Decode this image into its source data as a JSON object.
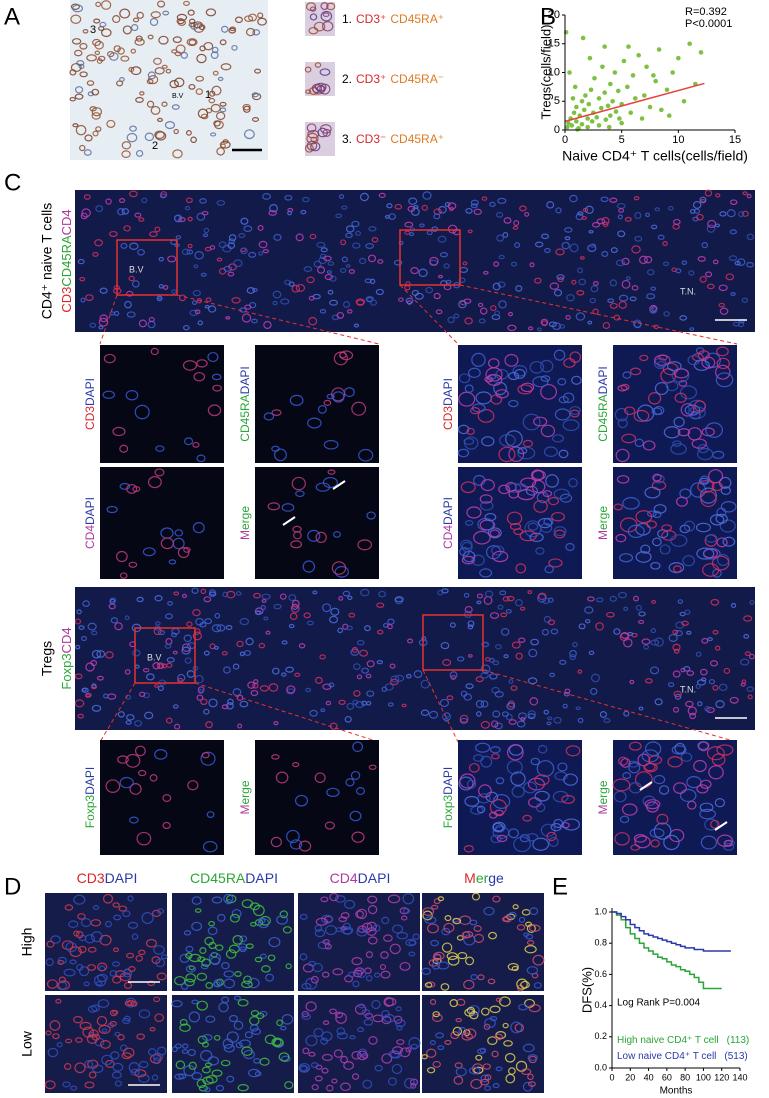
{
  "panels": {
    "A": {
      "label": "A",
      "markers": [
        "3",
        "1",
        "2"
      ],
      "vessel": "B.V",
      "insets": [
        {
          "number": "1.",
          "segments": [
            {
              "text": "CD3⁺",
              "color": "#d7262b"
            },
            {
              "text": "CD45RA⁺",
              "color": "#e07b22"
            }
          ]
        },
        {
          "number": "2.",
          "segments": [
            {
              "text": "CD3⁺",
              "color": "#d7262b"
            },
            {
              "text": "CD45RA⁻",
              "color": "#e07b22"
            }
          ]
        },
        {
          "number": "3.",
          "segments": [
            {
              "text": "CD3⁻",
              "color": "#d7262b"
            },
            {
              "text": "CD45RA⁺",
              "color": "#e07b22"
            }
          ]
        }
      ]
    },
    "B": {
      "label": "B"
    },
    "C": {
      "label": "C",
      "naive": {
        "title": "CD4⁺ naive T cells",
        "stain": [
          {
            "text": "CD3",
            "color": "#d7262b"
          },
          {
            "text": "CD45RA",
            "color": "#2aa636"
          },
          {
            "text": "CD4",
            "color": "#b0389e"
          }
        ],
        "vessel": "B.V",
        "tumor": "T.N.",
        "panels": [
          [
            {
              "text": "CD3",
              "color": "#d7262b"
            },
            {
              "text": "DAPI",
              "color": "#2b3aa8"
            }
          ],
          [
            {
              "text": "CD45RA",
              "color": "#2aa636"
            },
            {
              "text": "DAPI",
              "color": "#2b3aa8"
            }
          ],
          [
            {
              "text": "CD4",
              "color": "#b0389e"
            },
            {
              "text": "DAPI",
              "color": "#2b3aa8"
            }
          ],
          [
            {
              "text": "M",
              "color": "#b0389e"
            },
            {
              "text": "erge",
              "color": "#2aa636"
            }
          ]
        ]
      },
      "tregs": {
        "title": "Tregs",
        "stain": [
          {
            "text": "Foxp3",
            "color": "#2aa636"
          },
          {
            "text": "CD4",
            "color": "#b0389e"
          }
        ],
        "vessel": "B.V",
        "tumor": "T.N.",
        "panels": [
          [
            {
              "text": "Foxp3",
              "color": "#2aa636"
            },
            {
              "text": "DAPI",
              "color": "#2b3aa8"
            }
          ],
          [
            {
              "text": "M",
              "color": "#b0389e"
            },
            {
              "text": "erge",
              "color": "#2aa636"
            }
          ]
        ]
      }
    },
    "D": {
      "label": "D",
      "columns": [
        [
          {
            "text": "CD3",
            "color": "#d7262b"
          },
          {
            "text": "DAPI",
            "color": "#2b3aa8"
          }
        ],
        [
          {
            "text": "CD45RA",
            "color": "#2aa636"
          },
          {
            "text": "DAPI",
            "color": "#2b3aa8"
          }
        ],
        [
          {
            "text": "CD4",
            "color": "#b0389e"
          },
          {
            "text": "DAPI",
            "color": "#2b3aa8"
          }
        ],
        [
          {
            "text": "M",
            "color": "#d7262b"
          },
          {
            "text": "er",
            "color": "#2aa636"
          },
          {
            "text": "ge",
            "color": "#2b3aa8"
          }
        ]
      ],
      "rows": [
        "High",
        "Low"
      ]
    },
    "E": {
      "label": "E"
    }
  },
  "chart_data": [
    {
      "type": "scatter",
      "xlabel": "Naive CD4⁺ T cells(cells/field)",
      "ylabel": "Tregs(cells/field)",
      "annotations": [
        "R=0.392",
        "P<0.0001"
      ],
      "color": "#7cc142",
      "xlim": [
        0,
        15
      ],
      "xticks": [
        0,
        5,
        10,
        15
      ],
      "ylim": [
        0,
        20
      ],
      "yticks": [
        0,
        5,
        10,
        15,
        20
      ],
      "x": [
        0.2,
        0.3,
        0.5,
        0.6,
        0.8,
        1,
        1,
        1.2,
        1.3,
        1.5,
        1.5,
        1.7,
        1.8,
        2,
        2,
        2.1,
        2.3,
        2.4,
        2.5,
        2.6,
        2.8,
        3,
        3,
        3.2,
        3.3,
        3.5,
        3.6,
        3.8,
        4,
        4,
        4.2,
        4.4,
        4.5,
        4.7,
        5,
        5,
        5.2,
        5.5,
        5.8,
        6,
        6.2,
        6.5,
        6.8,
        7,
        7.2,
        7.5,
        8,
        8.3,
        8.5,
        9,
        9.5,
        10,
        10.5,
        11,
        11.5,
        12,
        0.1,
        1.6,
        3.5,
        0.4,
        0.9,
        2.2,
        4.8,
        1.1,
        0.7,
        3.9,
        5.6,
        7.8,
        9.2
      ],
      "values": [
        0.5,
        1.2,
        2,
        0.8,
        3,
        1.5,
        4,
        0.3,
        2.5,
        5,
        1,
        3.5,
        6,
        2,
        0.5,
        4.5,
        7,
        1.5,
        3,
        9,
        2.2,
        5.5,
        0.8,
        3.8,
        11,
        6.5,
        1.8,
        4.2,
        8,
        2.5,
        5,
        10,
        3.2,
        6.8,
        1.2,
        4.5,
        12,
        7.5,
        3,
        9.5,
        5.5,
        13,
        2,
        6,
        11,
        4,
        8.5,
        14,
        3.5,
        7,
        10,
        12.5,
        5,
        15,
        8,
        13.5,
        17,
        16,
        14.5,
        10,
        7.5,
        12.5,
        2,
        0.1,
        5.5,
        0.5,
        14.5,
        9.5,
        2.5
      ],
      "fit": {
        "x": [
          0,
          12.3
        ],
        "values": [
          1.5,
          8.1
        ],
        "color": "#e8433d"
      }
    },
    {
      "type": "line",
      "step": true,
      "ylabel": "DFS(%)",
      "xlabel": "Months",
      "annotation": "Log Rank P=0.004",
      "xlim": [
        0,
        140
      ],
      "xticks": [
        0,
        20,
        40,
        60,
        80,
        100,
        120,
        140
      ],
      "ylim": [
        0,
        1
      ],
      "yticks": [
        {
          "value": 0,
          "label": "0.0"
        },
        0.2,
        0.4,
        0.6,
        0.8,
        {
          "value": 1,
          "label": "1.0"
        }
      ],
      "x": [
        0,
        5,
        10,
        15,
        20,
        25,
        30,
        35,
        40,
        45,
        50,
        55,
        60,
        65,
        70,
        75,
        80,
        85,
        90,
        95,
        100,
        110,
        120,
        130
      ],
      "series": [
        {
          "name": "High naive CD4⁺ T cell",
          "count": "(113)",
          "color": "#2aa636",
          "values": [
            1,
            0.98,
            0.95,
            0.9,
            0.86,
            0.83,
            0.8,
            0.77,
            0.75,
            0.73,
            0.71,
            0.7,
            0.68,
            0.66,
            0.65,
            0.63,
            0.62,
            0.6,
            0.58,
            0.55,
            0.51,
            0.51,
            0.51,
            null
          ]
        },
        {
          "name": "Low naive CD4⁺ T cell",
          "count": "(513)",
          "color": "#2b3aa8",
          "values": [
            1,
            0.99,
            0.97,
            0.95,
            0.92,
            0.9,
            0.88,
            0.86,
            0.85,
            0.84,
            0.83,
            0.82,
            0.81,
            0.8,
            0.79,
            0.78,
            0.77,
            0.77,
            0.76,
            0.76,
            0.75,
            0.75,
            0.75,
            0.75
          ]
        }
      ]
    }
  ]
}
